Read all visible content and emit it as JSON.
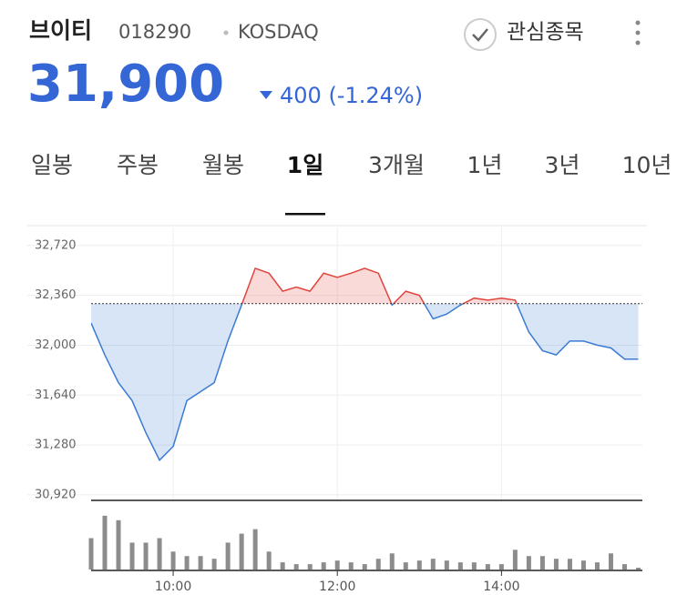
{
  "header": {
    "name": "브이티",
    "code": "018290",
    "market": "KOSDAQ",
    "watch": "관심종목",
    "price": "31,900",
    "change": "400 (-1.24%)"
  },
  "tabs": [
    "일봉",
    "주봉",
    "월봉",
    "1일",
    "3개월",
    "1년",
    "3년",
    "10년"
  ],
  "selected_tab": 3,
  "chart_data": {
    "type": "line",
    "x": [
      "09:00",
      "09:10",
      "09:20",
      "09:30",
      "09:40",
      "09:50",
      "10:00",
      "10:10",
      "10:20",
      "10:30",
      "10:40",
      "10:50",
      "11:00",
      "11:10",
      "11:20",
      "11:30",
      "11:40",
      "11:50",
      "12:00",
      "12:10",
      "12:20",
      "12:30",
      "12:40",
      "12:50",
      "13:00",
      "13:10",
      "13:20",
      "13:30",
      "13:40",
      "13:50",
      "14:00",
      "14:10",
      "14:20",
      "14:30",
      "14:40",
      "14:50",
      "15:00",
      "15:10",
      "15:20",
      "15:30",
      "15:40"
    ],
    "series": [
      {
        "color_above": "#e0443c",
        "color_below": "#3b7bd4",
        "values": [
          32160,
          31930,
          31730,
          31600,
          31370,
          31170,
          31270,
          31600,
          31665,
          31730,
          32030,
          32290,
          32555,
          32520,
          32390,
          32420,
          32390,
          32520,
          32490,
          32520,
          32555,
          32520,
          32290,
          32390,
          32360,
          32190,
          32225,
          32290,
          32340,
          32325,
          32340,
          32325,
          32095,
          31960,
          31930,
          32030,
          32030,
          32000,
          31980,
          31900,
          31900
        ]
      }
    ],
    "baseline": 32300,
    "xlim": [
      "09:00",
      "15:43"
    ],
    "xticks": [
      "10:00",
      "12:00",
      "14:00"
    ],
    "ylim": [
      30880,
      32850
    ],
    "yticks": [
      {
        "value": 30920,
        "label": "30,920"
      },
      {
        "value": 31280,
        "label": "31,280"
      },
      {
        "value": 31640,
        "label": "31,640"
      },
      {
        "value": 32000,
        "label": "32,000"
      },
      {
        "value": 32360,
        "label": "32,360"
      },
      {
        "value": 32720,
        "label": "32,720"
      }
    ],
    "grid": true,
    "volume": {
      "color": "#8c8c8c",
      "ylim": [
        0,
        70
      ],
      "values": [
        35,
        60,
        55,
        30,
        30,
        35,
        20,
        15,
        15,
        12,
        30,
        40,
        45,
        20,
        8,
        6,
        6,
        8,
        10,
        8,
        6,
        12,
        18,
        8,
        10,
        12,
        10,
        8,
        8,
        6,
        6,
        22,
        15,
        15,
        12,
        12,
        10,
        8,
        18,
        6,
        2
      ]
    }
  }
}
